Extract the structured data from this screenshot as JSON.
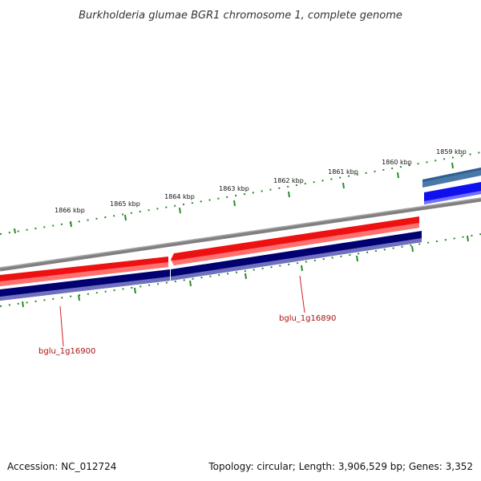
{
  "title": "Burkholderia glumae BGR1 chromosome 1, complete genome",
  "footer": {
    "accession": "Accession: NC_012724",
    "summary": "Topology: circular; Length: 3,906,529 bp; Genes: 3,352"
  },
  "kbp_labels": [
    "1866 kbp",
    "1865 kbp",
    "1864 kbp",
    "1863 kbp",
    "1862 kbp",
    "1861 kbp",
    "1860 kbp",
    "1859 kbp"
  ],
  "genes": [
    {
      "name": "bglu_1g16900"
    },
    {
      "name": "bglu_1g16890"
    }
  ],
  "colors": {
    "backbone": "#808080",
    "forward_cds": "#ee1111",
    "forward_cds_light": "#ff7777",
    "reverse_cds": "#000070",
    "reverse_cds_light": "#7070c0",
    "gene_blue": "#1010ee",
    "gene_steel": "#4a78a8",
    "tick": "#2a8a2a",
    "label_red": "#aa1111"
  }
}
